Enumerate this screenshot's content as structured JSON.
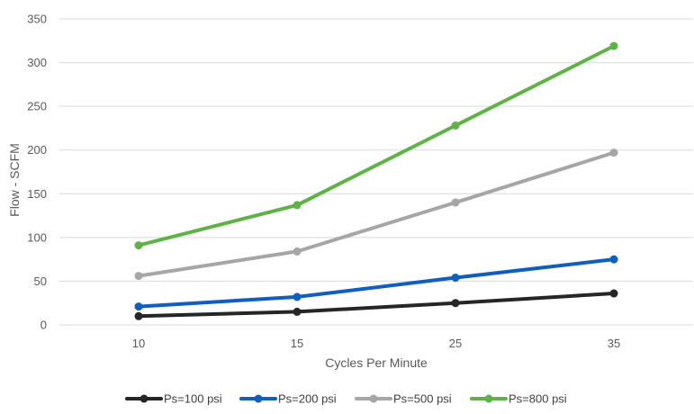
{
  "chart_data": {
    "type": "line",
    "xlabel": "Cycles Per Minute",
    "ylabel": "Flow - SCFM",
    "ylim": [
      0,
      350
    ],
    "y_ticks": [
      0,
      50,
      100,
      150,
      200,
      250,
      300,
      350
    ],
    "grid": "horizontal",
    "legend_position": "bottom",
    "categories": [
      "10",
      "15",
      "25",
      "35"
    ],
    "series": [
      {
        "name": "Ps=100 psi",
        "color": "#262626",
        "values": [
          10,
          15,
          25,
          36
        ]
      },
      {
        "name": "Ps=200 psi",
        "color": "#0f5ec0",
        "values": [
          21,
          32,
          54,
          75
        ]
      },
      {
        "name": "Ps=500 psi",
        "color": "#a6a6a6",
        "values": [
          56,
          84,
          140,
          197
        ]
      },
      {
        "name": "Ps=800 psi",
        "color": "#5fb346",
        "values": [
          91,
          137,
          228,
          319
        ]
      }
    ]
  }
}
